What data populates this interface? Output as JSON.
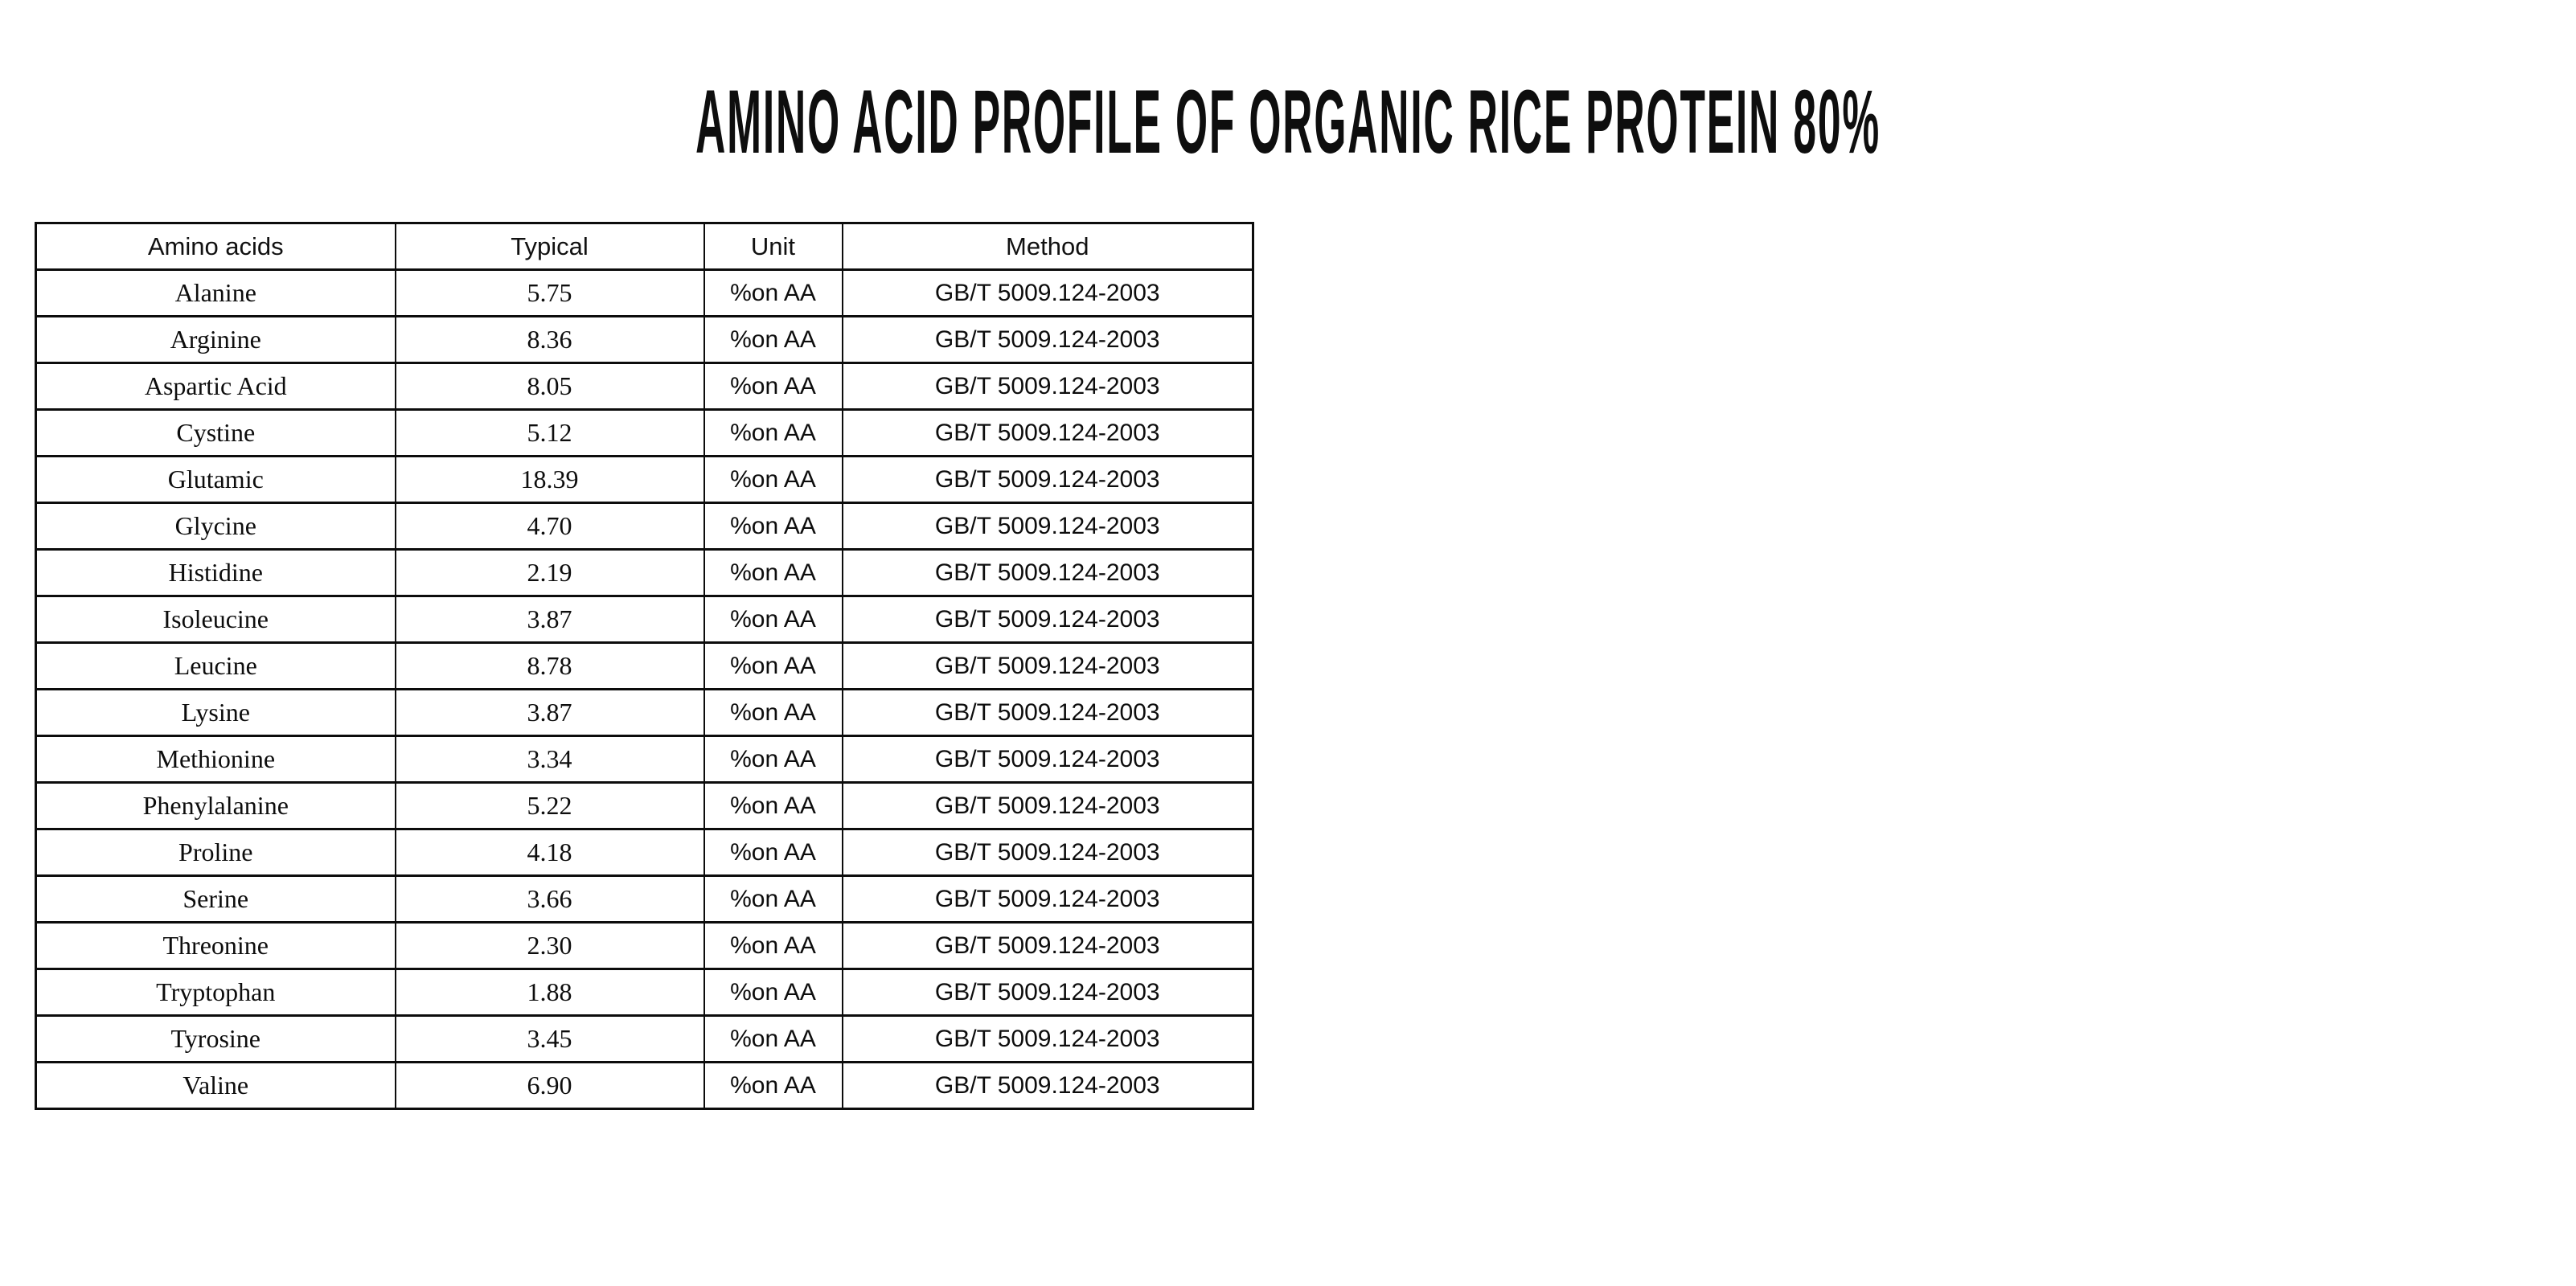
{
  "page": {
    "title": "AMINO ACID PROFILE OF ORGANIC RICE PROTEIN 80%"
  },
  "table": {
    "headers": [
      "Amino acids",
      "Typical",
      "Unit",
      "Method"
    ],
    "rows": [
      {
        "name": "Alanine",
        "typical": "5.75",
        "unit": "%on AA",
        "method": "GB/T 5009.124-2003"
      },
      {
        "name": "Arginine",
        "typical": "8.36",
        "unit": "%on AA",
        "method": "GB/T 5009.124-2003"
      },
      {
        "name": "Aspartic Acid",
        "typical": "8.05",
        "unit": "%on AA",
        "method": "GB/T 5009.124-2003"
      },
      {
        "name": "Cystine",
        "typical": "5.12",
        "unit": "%on AA",
        "method": "GB/T 5009.124-2003"
      },
      {
        "name": "Glutamic",
        "typical": "18.39",
        "unit": "%on AA",
        "method": "GB/T 5009.124-2003"
      },
      {
        "name": "Glycine",
        "typical": "4.70",
        "unit": "%on AA",
        "method": "GB/T 5009.124-2003"
      },
      {
        "name": "Histidine",
        "typical": "2.19",
        "unit": "%on AA",
        "method": "GB/T 5009.124-2003"
      },
      {
        "name": "Isoleucine",
        "typical": "3.87",
        "unit": "%on AA",
        "method": "GB/T 5009.124-2003"
      },
      {
        "name": "Leucine",
        "typical": "8.78",
        "unit": "%on AA",
        "method": "GB/T 5009.124-2003"
      },
      {
        "name": "Lysine",
        "typical": "3.87",
        "unit": "%on AA",
        "method": "GB/T 5009.124-2003"
      },
      {
        "name": "Methionine",
        "typical": "3.34",
        "unit": "%on AA",
        "method": "GB/T 5009.124-2003"
      },
      {
        "name": "Phenylalanine",
        "typical": "5.22",
        "unit": "%on AA",
        "method": "GB/T 5009.124-2003"
      },
      {
        "name": "Proline",
        "typical": "4.18",
        "unit": "%on AA",
        "method": "GB/T 5009.124-2003"
      },
      {
        "name": "Serine",
        "typical": "3.66",
        "unit": "%on AA",
        "method": "GB/T 5009.124-2003"
      },
      {
        "name": "Threonine",
        "typical": "2.30",
        "unit": "%on AA",
        "method": "GB/T 5009.124-2003"
      },
      {
        "name": "Tryptophan",
        "typical": "1.88",
        "unit": "%on AA",
        "method": "GB/T 5009.124-2003"
      },
      {
        "name": "Tyrosine",
        "typical": "3.45",
        "unit": "%on AA",
        "method": "GB/T 5009.124-2003"
      },
      {
        "name": "Valine",
        "typical": "6.90",
        "unit": "%on AA",
        "method": "GB/T 5009.124-2003"
      }
    ]
  }
}
